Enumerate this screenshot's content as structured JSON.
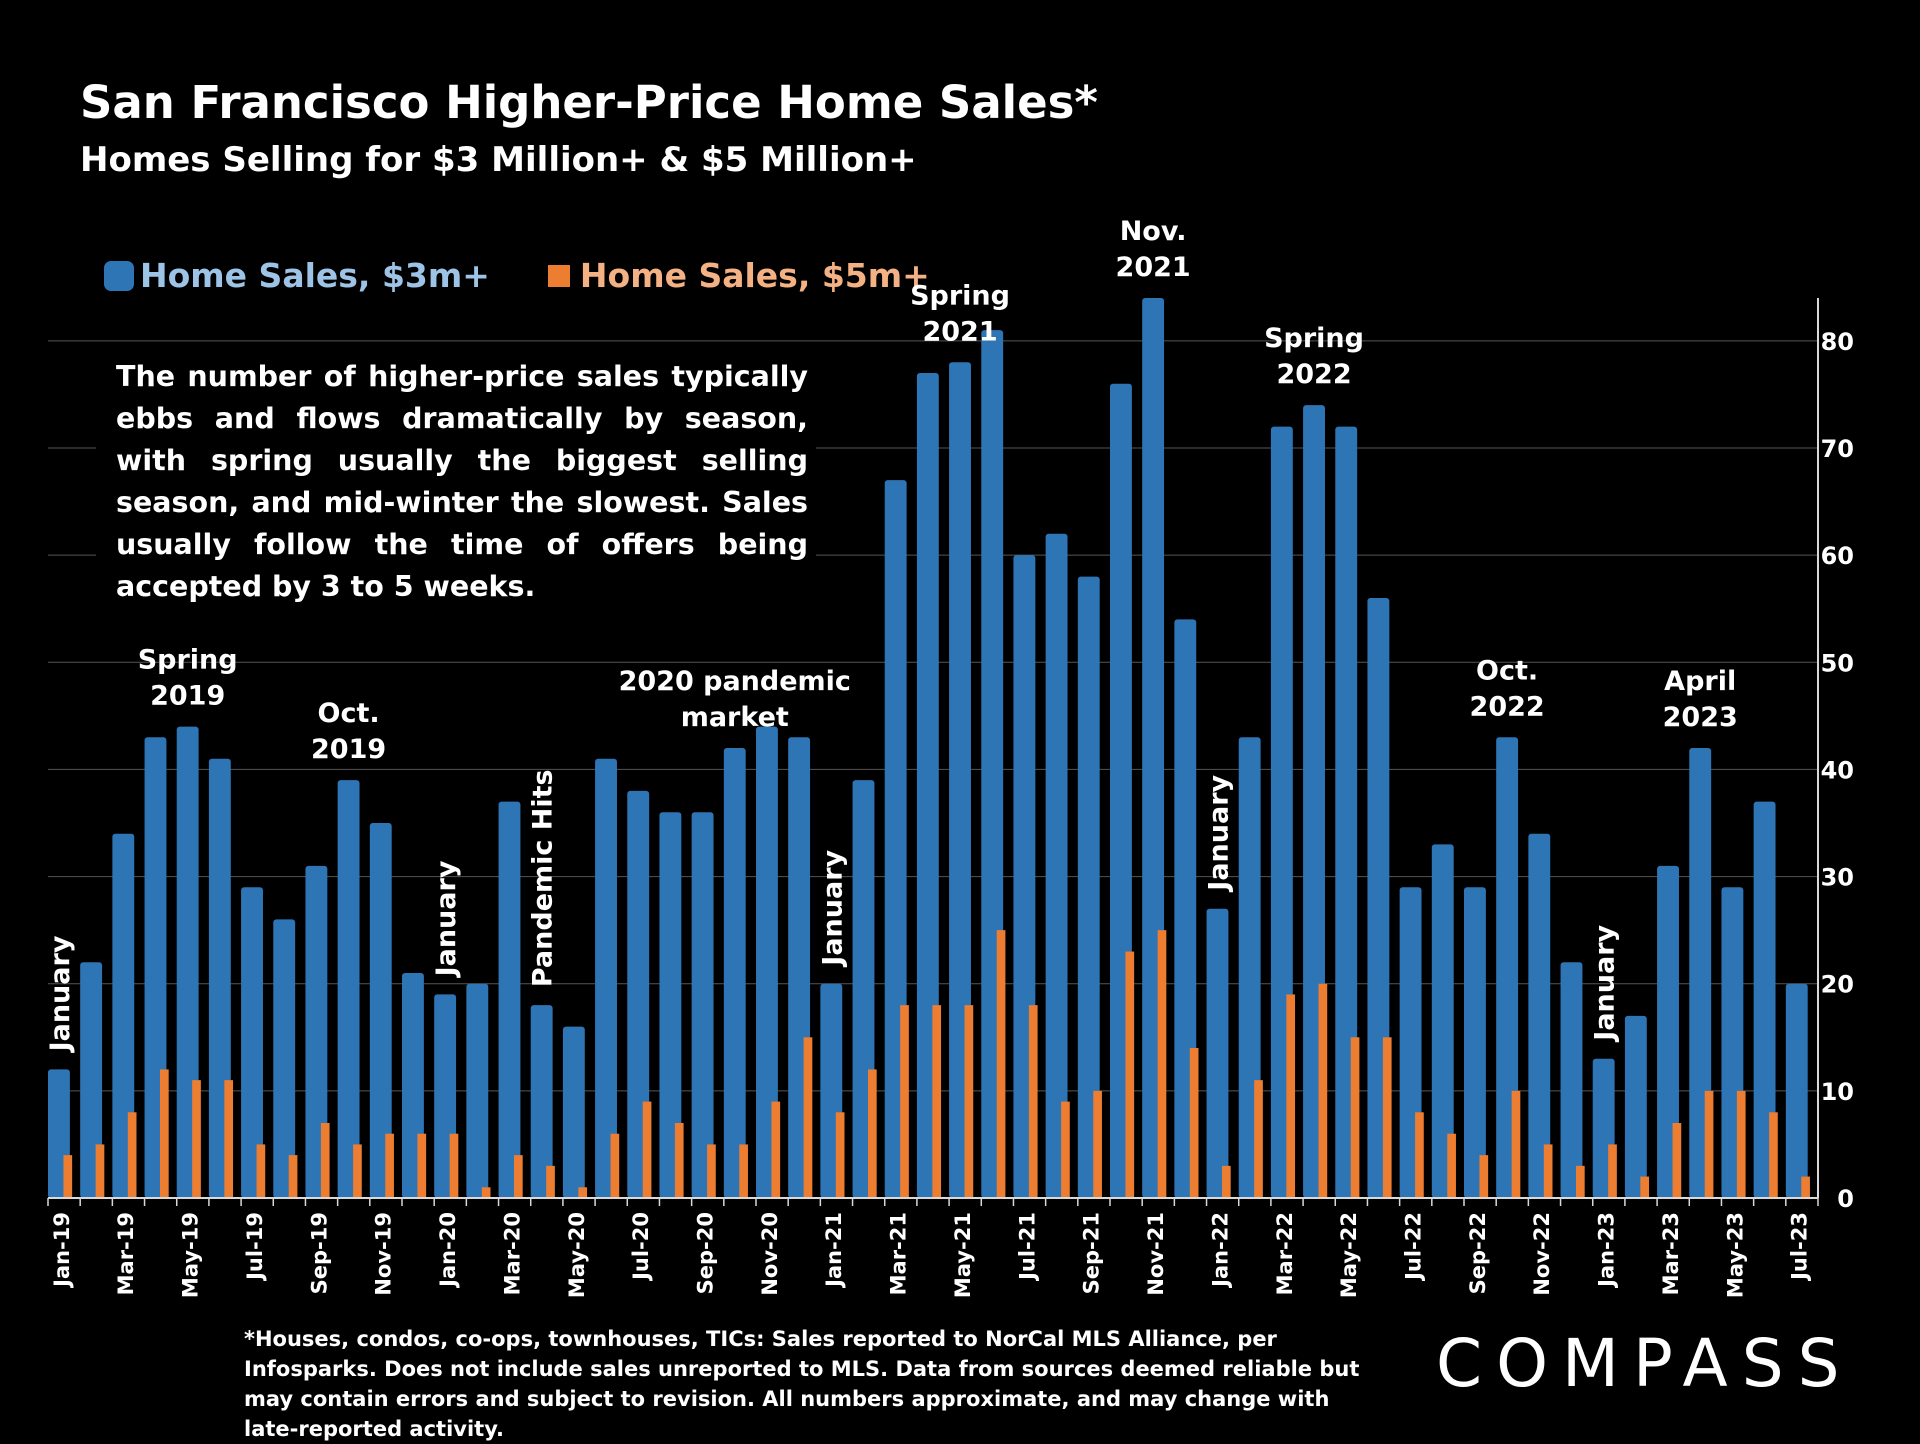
{
  "title": "San Francisco Higher-Price Home Sales*",
  "subtitle": "Homes Selling for $3 Million+ & $5 Million+",
  "annotation_box": "The number of higher-price sales typically ebbs and flows dramatically by season, with spring usually the biggest selling season, and mid-winter the slowest. Sales usually follow the time of offers being accepted by 3 to 5 weeks.",
  "footnote": "*Houses, condos, co-ops, townhouses, TICs:  Sales reported to NorCal MLS Alliance, per Infosparks. Does not include sales unreported to MLS. Data from sources deemed reliable but may contain errors and subject to revision.  All numbers approximate, and may change with late-reported activity.",
  "logo": "COMPASS",
  "colors": {
    "blue": "#2E75B6",
    "orange": "#ED7D31",
    "legend_blue_text": "#9DC3E6",
    "legend_orange_text": "#F4B183",
    "grid": "#555555"
  },
  "chart_data": {
    "type": "bar",
    "title": "San Francisco Higher-Price Home Sales*",
    "ylim": [
      0,
      84
    ],
    "yticks": [
      0,
      10,
      20,
      30,
      40,
      50,
      60,
      70,
      80
    ],
    "grid": true,
    "legend_position": "top-left",
    "categories": [
      "Jan-19",
      "Feb-19",
      "Mar-19",
      "Apr-19",
      "May-19",
      "Jun-19",
      "Jul-19",
      "Aug-19",
      "Sep-19",
      "Oct-19",
      "Nov-19",
      "Dec-19",
      "Jan-20",
      "Feb-20",
      "Mar-20",
      "Apr-20",
      "May-20",
      "Jun-20",
      "Jul-20",
      "Aug-20",
      "Sep-20",
      "Oct-20",
      "Nov-20",
      "Dec-20",
      "Jan-21",
      "Feb-21",
      "Mar-21",
      "Apr-21",
      "May-21",
      "Jun-21",
      "Jul-21",
      "Aug-21",
      "Sep-21",
      "Oct-21",
      "Nov-21",
      "Dec-21",
      "Jan-22",
      "Feb-22",
      "Mar-22",
      "Apr-22",
      "May-22",
      "Jun-22",
      "Jul-22",
      "Aug-22",
      "Sep-22",
      "Oct-22",
      "Nov-22",
      "Dec-22",
      "Jan-23",
      "Feb-23",
      "Mar-23",
      "Apr-23",
      "May-23",
      "Jun-23",
      "Jul-23"
    ],
    "tick_labels": [
      "Jan-19",
      "",
      "Mar-19",
      "",
      "May-19",
      "",
      "Jul-19",
      "",
      "Sep-19",
      "",
      "Nov-19",
      "",
      "Jan-20",
      "",
      "Mar-20",
      "",
      "May-20",
      "",
      "Jul-20",
      "",
      "Sep-20",
      "",
      "Nov-20",
      "",
      "Jan-21",
      "",
      "Mar-21",
      "",
      "May-21",
      "",
      "Jul-21",
      "",
      "Sep-21",
      "",
      "Nov-21",
      "",
      "Jan-22",
      "",
      "Mar-22",
      "",
      "May-22",
      "",
      "Jul-22",
      "",
      "Sep-22",
      "",
      "Nov-22",
      "",
      "Jan-23",
      "",
      "Mar-23",
      "",
      "May-23",
      "",
      "Jul-23"
    ],
    "series": [
      {
        "name": "Home Sales, $3m+",
        "values": [
          12,
          22,
          34,
          43,
          44,
          41,
          29,
          26,
          31,
          39,
          35,
          21,
          19,
          20,
          37,
          18,
          16,
          41,
          38,
          36,
          36,
          42,
          44,
          43,
          20,
          39,
          67,
          77,
          78,
          81,
          60,
          62,
          58,
          76,
          84,
          54,
          27,
          43,
          72,
          74,
          72,
          56,
          29,
          33,
          29,
          43,
          34,
          22,
          13,
          17,
          31,
          42,
          29,
          37,
          20
        ]
      },
      {
        "name": "Home Sales, $5m+",
        "values": [
          4,
          5,
          8,
          12,
          11,
          11,
          5,
          4,
          7,
          5,
          6,
          6,
          6,
          1,
          4,
          3,
          1,
          6,
          9,
          7,
          5,
          5,
          9,
          15,
          8,
          12,
          18,
          18,
          18,
          25,
          18,
          9,
          10,
          23,
          25,
          14,
          3,
          11,
          19,
          20,
          15,
          15,
          8,
          6,
          4,
          10,
          5,
          3,
          5,
          2,
          7,
          10,
          10,
          8,
          2
        ]
      }
    ],
    "annotations": [
      {
        "text": "January",
        "index": 0,
        "rotated": true
      },
      {
        "text": "Spring 2019",
        "index": 4,
        "rotated": false
      },
      {
        "text": "Oct. 2019",
        "index": 9,
        "rotated": false
      },
      {
        "text": "January",
        "index": 12,
        "rotated": true
      },
      {
        "text": "Pandemic Hits",
        "index": 15,
        "rotated": true
      },
      {
        "text": "2020 pandemic market",
        "index": 21,
        "rotated": false
      },
      {
        "text": "January",
        "index": 24,
        "rotated": true
      },
      {
        "text": "Spring 2021",
        "index": 28,
        "rotated": false
      },
      {
        "text": "Nov. 2021",
        "index": 34,
        "rotated": false
      },
      {
        "text": "January",
        "index": 36,
        "rotated": true
      },
      {
        "text": "Spring 2022",
        "index": 39,
        "rotated": false
      },
      {
        "text": "Oct. 2022",
        "index": 45,
        "rotated": false
      },
      {
        "text": "January",
        "index": 48,
        "rotated": true
      },
      {
        "text": "April 2023",
        "index": 51,
        "rotated": false
      }
    ]
  }
}
